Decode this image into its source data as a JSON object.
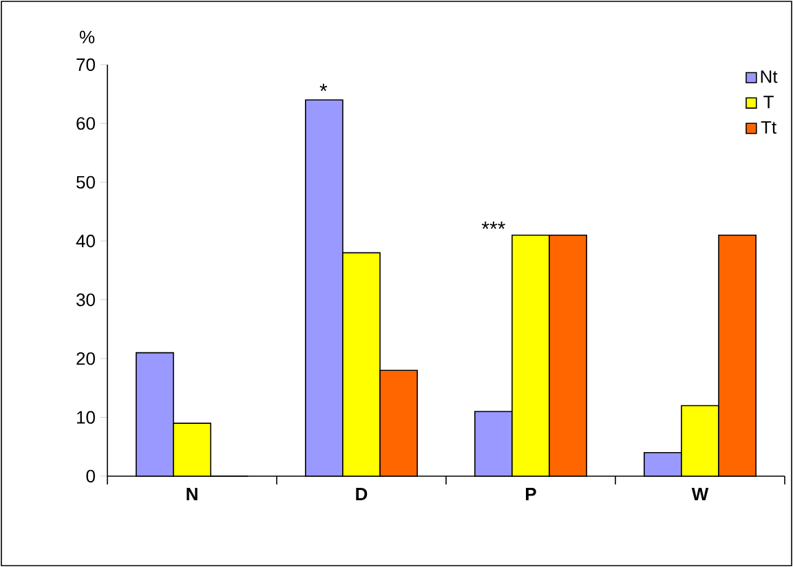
{
  "chart_data": {
    "type": "bar",
    "ylabel": "%",
    "categories": [
      "N",
      "D",
      "P",
      "W"
    ],
    "series": [
      {
        "name": "Nt",
        "color": "#9999ff",
        "values": [
          21,
          64,
          11,
          4
        ]
      },
      {
        "name": "T",
        "color": "#ffff00",
        "values": [
          9,
          38,
          41,
          12
        ]
      },
      {
        "name": "Tt",
        "color": "#ff6600",
        "values": [
          0,
          18,
          41,
          41
        ]
      }
    ],
    "ylim": [
      0,
      70
    ],
    "yticks": [
      0,
      10,
      20,
      30,
      40,
      50,
      60,
      70
    ],
    "annotations": [
      "*",
      "***"
    ],
    "grid": false,
    "legend": "top right"
  }
}
